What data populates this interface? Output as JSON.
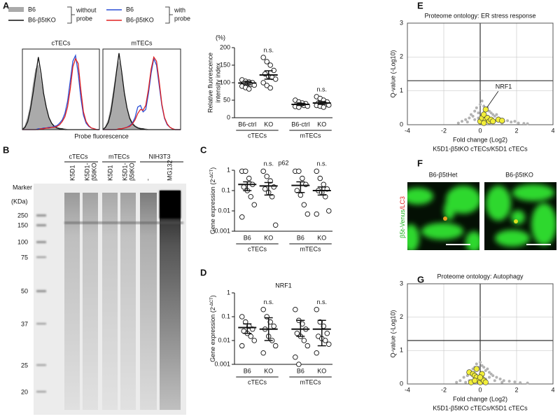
{
  "figure": {
    "panel_labels": [
      "A",
      "B",
      "C",
      "D",
      "E",
      "F",
      "G"
    ],
    "legend": {
      "without_items": [
        "B6",
        "B6-β5tKO"
      ],
      "without_label": [
        "without",
        "probe"
      ],
      "with_items": [
        "B6",
        "B6-β5tKO"
      ],
      "with_label": [
        "with",
        "probe"
      ]
    },
    "blot": {
      "marker": "Marker",
      "unit": "(KDa)",
      "sizes": [
        250,
        150,
        100,
        75,
        50,
        37,
        25,
        20
      ],
      "groups": [
        "cTECs",
        "mTECs",
        "NIH3T3"
      ],
      "lanes": [
        [
          "K5D1"
        ],
        [
          "K5D1-",
          "β5tKO"
        ],
        [
          "K5D1"
        ],
        [
          "K5D1-",
          "β5tKO"
        ],
        [
          "-"
        ],
        [
          "MG132"
        ]
      ]
    },
    "microscopy": {
      "titles": [
        "B6-β5tHet",
        "B6-β5tKO"
      ],
      "stain": [
        "β5t-Venus",
        "/LC3"
      ]
    }
  },
  "chart_data": [
    {
      "type": "line",
      "title": "cTECs",
      "x_label": "Probe fluorescence",
      "ylim": [
        0,
        100
      ],
      "series": [
        {
          "color": "#aaaaaa",
          "fill": true,
          "values": [
            0,
            5,
            15,
            30,
            55,
            75,
            80,
            60,
            40,
            25,
            15,
            8,
            5,
            3,
            2,
            1,
            1,
            0,
            0,
            0,
            0,
            0,
            0,
            0,
            0,
            0,
            0,
            0,
            0,
            0
          ]
        },
        {
          "color": "#111111",
          "values": [
            0,
            3,
            10,
            25,
            45,
            68,
            90,
            70,
            45,
            28,
            15,
            8,
            4,
            2,
            1,
            1,
            0,
            0,
            0,
            0,
            0,
            0,
            0,
            0,
            0,
            0,
            0,
            0,
            0,
            0
          ]
        },
        {
          "color": "#2b4fd6",
          "values": [
            0,
            0,
            0,
            0,
            0,
            0,
            1,
            1,
            2,
            2,
            3,
            3,
            4,
            5,
            8,
            12,
            20,
            35,
            60,
            85,
            92,
            70,
            40,
            18,
            8,
            4,
            2,
            1,
            0,
            0
          ]
        },
        {
          "color": "#e02020",
          "values": [
            0,
            0,
            0,
            0,
            0,
            0,
            0,
            1,
            1,
            2,
            2,
            3,
            3,
            4,
            6,
            10,
            16,
            28,
            50,
            78,
            88,
            82,
            50,
            22,
            10,
            5,
            2,
            1,
            0,
            0
          ]
        }
      ]
    },
    {
      "type": "line",
      "title": "mTECs",
      "ylim": [
        0,
        100
      ],
      "series": [
        {
          "color": "#aaaaaa",
          "fill": true,
          "values": [
            0,
            4,
            12,
            28,
            50,
            70,
            85,
            65,
            42,
            26,
            15,
            9,
            5,
            3,
            2,
            1,
            1,
            0,
            0,
            0,
            0,
            0,
            0,
            0,
            0,
            0,
            0,
            0,
            0,
            0
          ]
        },
        {
          "color": "#111111",
          "values": [
            0,
            3,
            9,
            22,
            44,
            70,
            95,
            72,
            46,
            27,
            14,
            7,
            4,
            2,
            1,
            1,
            0,
            0,
            0,
            0,
            0,
            0,
            0,
            0,
            0,
            0,
            0,
            0,
            0,
            0
          ]
        },
        {
          "color": "#2b4fd6",
          "values": [
            0,
            0,
            0,
            0,
            0,
            0,
            1,
            1,
            2,
            3,
            5,
            8,
            15,
            28,
            30,
            22,
            25,
            45,
            70,
            88,
            80,
            55,
            30,
            14,
            6,
            3,
            1,
            0,
            0,
            0
          ]
        },
        {
          "color": "#e02020",
          "values": [
            0,
            0,
            0,
            0,
            0,
            0,
            1,
            1,
            2,
            3,
            4,
            7,
            12,
            20,
            25,
            24,
            30,
            50,
            75,
            90,
            85,
            60,
            32,
            15,
            7,
            3,
            1,
            0,
            0,
            0
          ]
        }
      ]
    },
    {
      "type": "dot",
      "y_unit": "(%)",
      "y_label": [
        "Relative fluorescence",
        "intensity index"
      ],
      "ylim": [
        0,
        200
      ],
      "yticks": [
        0,
        50,
        100,
        150,
        200
      ],
      "categories": [
        "B6-ctrl",
        "KO",
        "B6-ctrl",
        "KO"
      ],
      "groups": [
        "cTECs",
        "mTECs"
      ],
      "annotations": [
        null,
        "n.s.",
        null,
        "n.s."
      ],
      "points": [
        [
          108,
          104,
          102,
          100,
          98,
          97,
          95,
          93,
          90,
          86,
          82
        ],
        [
          172,
          160,
          150,
          135,
          125,
          118,
          115,
          110,
          100,
          92,
          85
        ],
        [
          50,
          45,
          42,
          40,
          38,
          37,
          35,
          33,
          32,
          30
        ],
        [
          60,
          55,
          50,
          45,
          42,
          40,
          38,
          36,
          35,
          33,
          30
        ]
      ],
      "means": [
        99,
        122,
        38,
        42
      ],
      "lower": [
        94,
        110,
        35,
        38
      ],
      "upper": [
        104,
        134,
        41,
        46
      ]
    },
    {
      "type": "dot",
      "title": "p62",
      "log": true,
      "y_label": {
        "text": "Gene expression (2",
        "sup": "-ΔCT",
        "end": ")"
      },
      "ylim": [
        0.001,
        1
      ],
      "yticks": [
        0.001,
        0.01,
        0.1,
        1
      ],
      "categories": [
        "B6",
        "KO",
        "B6",
        "KO"
      ],
      "groups": [
        "cTECs",
        "mTECs"
      ],
      "annotations": [
        null,
        "n.s.",
        null,
        "n.s."
      ],
      "points": [
        [
          0.9,
          0.9,
          0.4,
          0.2,
          0.15,
          0.1,
          0.05,
          0.02,
          0.005
        ],
        [
          0.9,
          0.5,
          0.3,
          0.15,
          0.12,
          0.08,
          0.05,
          0.002
        ],
        [
          0.9,
          0.9,
          0.4,
          0.2,
          0.1,
          0.06,
          0.02,
          0.007
        ],
        [
          0.9,
          0.4,
          0.2,
          0.12,
          0.1,
          0.08,
          0.05,
          0.01,
          0.007
        ]
      ],
      "means": [
        0.2,
        0.17,
        0.18,
        0.1
      ],
      "lower": [
        0.1,
        0.06,
        0.08,
        0.06
      ],
      "upper": [
        0.27,
        0.25,
        0.27,
        0.15
      ]
    },
    {
      "type": "dot",
      "title": "NRF1",
      "log": true,
      "y_label": {
        "text": "Gene expression (2",
        "sup": "-ΔCT",
        "end": ")"
      },
      "ylim": [
        0.001,
        1
      ],
      "yticks": [
        0.001,
        0.01,
        0.1,
        1
      ],
      "categories": [
        "B6",
        "KO",
        "B6",
        "KO"
      ],
      "groups": [
        "cTECs",
        "mTECs"
      ],
      "annotations": [
        null,
        "n.s.",
        null,
        "n.s."
      ],
      "points": [
        [
          0.1,
          0.06,
          0.04,
          0.03,
          0.025,
          0.02,
          0.015,
          0.01,
          0.006
        ],
        [
          0.2,
          0.1,
          0.06,
          0.04,
          0.03,
          0.015,
          0.01,
          0.006,
          0.003
        ],
        [
          0.2,
          0.07,
          0.05,
          0.03,
          0.02,
          0.015,
          0.01,
          0.006,
          0.002,
          0.001
        ],
        [
          0.2,
          0.06,
          0.04,
          0.02,
          0.015,
          0.012,
          0.01,
          0.007,
          0.003
        ]
      ],
      "means": [
        0.035,
        0.03,
        0.03,
        0.03
      ],
      "lower": [
        0.02,
        0.01,
        0.015,
        0.006
      ],
      "upper": [
        0.05,
        0.09,
        0.07,
        0.07
      ]
    },
    {
      "type": "scatter",
      "title": "Proteome ontology: ER stress response",
      "x_label": "Fold change (Log2)",
      "x_sublabel": "K5D1-β5tKO cTECs/K5D1 cTECs",
      "y_label": "Q-value (-Log10)",
      "xlim": [
        -4,
        4
      ],
      "xticks": [
        -4,
        -2,
        0,
        2,
        4
      ],
      "ylim": [
        0,
        3
      ],
      "yticks": [
        0,
        1,
        2,
        3
      ],
      "grid": true,
      "threshold": 1.3,
      "annotation": "NRF1",
      "series": [
        {
          "color": "#b3b3b3",
          "x": [
            -1.2,
            -1,
            -0.8,
            -0.6,
            -0.5,
            -0.4,
            -0.3,
            -0.2,
            -0.1,
            0,
            0.1,
            0.2,
            0.3,
            0.4,
            0.5,
            0.6,
            0.7,
            0.8,
            0.9,
            1,
            1.1,
            1.3,
            1.5,
            1.7,
            1.9,
            2.1,
            2.4,
            2.6,
            -0.7,
            -0.3,
            0.2,
            0.5,
            0.8,
            1.2,
            0.1,
            -0.1,
            0.4,
            0.9
          ],
          "y": [
            0.05,
            0.1,
            0.15,
            0.2,
            0.3,
            0.25,
            0.4,
            0.5,
            0.35,
            0.6,
            0.7,
            0.55,
            0.45,
            0.5,
            0.4,
            0.35,
            0.3,
            0.25,
            0.3,
            0.2,
            0.15,
            0.1,
            0.12,
            0.08,
            0.1,
            0.05,
            0.04,
            0.03,
            0.08,
            0.15,
            0.2,
            0.1,
            0.1,
            0.05,
            0.3,
            0.2,
            0.25,
            0.15
          ]
        },
        {
          "color": "#f2ee3a",
          "x": [
            0,
            0.1,
            0.2,
            0.3,
            0.3,
            0.4,
            0.5,
            0.6,
            0.7,
            1,
            1.2,
            0.2
          ],
          "y": [
            0.1,
            0.2,
            0.3,
            0.45,
            0.15,
            0.2,
            0.1,
            0.15,
            0.1,
            0.15,
            0.12,
            0.05
          ]
        }
      ]
    },
    {
      "type": "scatter",
      "title": "Proteome ontology: Autophagy",
      "x_label": "Fold change (Log2)",
      "x_sublabel": "K5D1-β5tKO cTECs/K5D1 cTECs",
      "y_label": "Q-value (-Log10)",
      "xlim": [
        -4,
        4
      ],
      "xticks": [
        -4,
        -2,
        0,
        2,
        4
      ],
      "ylim": [
        0,
        3
      ],
      "yticks": [
        0,
        1,
        2,
        3
      ],
      "grid": true,
      "threshold": 1.3,
      "series": [
        {
          "color": "#b3b3b3",
          "x": [
            -1.3,
            -1.1,
            -0.9,
            -0.7,
            -0.5,
            -0.4,
            -0.3,
            -0.2,
            -0.1,
            0,
            0.1,
            0.2,
            0.3,
            0.4,
            0.5,
            0.6,
            0.7,
            0.9,
            1.1,
            1.3,
            1.6,
            1.9,
            2.2,
            2.6,
            -0.6,
            -0.2,
            0.3,
            0.8,
            1.2,
            0,
            0.5,
            -0.8
          ],
          "y": [
            0.05,
            0.1,
            0.2,
            0.25,
            0.3,
            0.45,
            0.5,
            0.6,
            0.5,
            0.65,
            0.55,
            0.5,
            0.4,
            0.45,
            0.35,
            0.3,
            0.25,
            0.2,
            0.15,
            0.1,
            0.08,
            0.06,
            0.04,
            0.03,
            0.1,
            0.2,
            0.15,
            0.1,
            0.05,
            0.3,
            0.2,
            0.05
          ]
        },
        {
          "color": "#f2ee3a",
          "x": [
            -0.6,
            -0.4,
            -0.3,
            -0.2,
            -0.2,
            -0.1,
            0,
            0.1,
            0.1,
            0.2,
            -0.5,
            -0.3,
            0,
            0.3
          ],
          "y": [
            0.35,
            0.3,
            0.25,
            0.2,
            0.45,
            0.1,
            0.05,
            0.15,
            0.3,
            0.1,
            0.05,
            0.1,
            0.2,
            0.05
          ]
        }
      ]
    }
  ]
}
